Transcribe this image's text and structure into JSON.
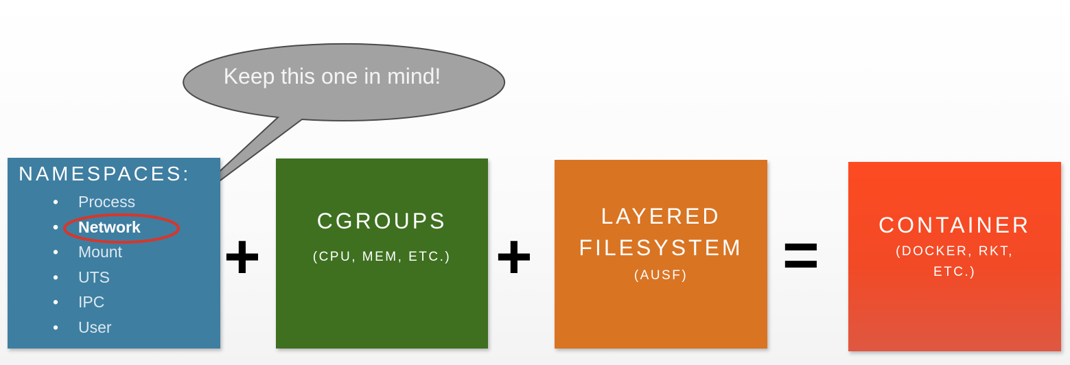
{
  "callout": {
    "text": "Keep this one in mind!"
  },
  "namespaces": {
    "title": "NAMESPACES:",
    "items": [
      {
        "label": "Process",
        "highlighted": false
      },
      {
        "label": "Network",
        "highlighted": true
      },
      {
        "label": "Mount",
        "highlighted": false
      },
      {
        "label": "UTS",
        "highlighted": false
      },
      {
        "label": "IPC",
        "highlighted": false
      },
      {
        "label": "User",
        "highlighted": false
      }
    ],
    "bullet": "•",
    "color": "#3e7ea1"
  },
  "operators": {
    "plus": "+",
    "equals": "="
  },
  "cgroups": {
    "title": "CGROUPS",
    "subtitle": "(CPU, MEM, ETC.)",
    "color": "#3e7020"
  },
  "layered_filesystem": {
    "title_line1": "LAYERED",
    "title_line2": "FILESYSTEM",
    "subtitle": "(AUSF)",
    "color": "#d97423"
  },
  "container": {
    "title": "CONTAINER",
    "subtitle_line1": "(DOCKER, RKT,",
    "subtitle_line2": "ETC.)",
    "color": "#f74a22"
  },
  "highlight_color": "#d9362a",
  "bubble_color": "#a2a2a2"
}
